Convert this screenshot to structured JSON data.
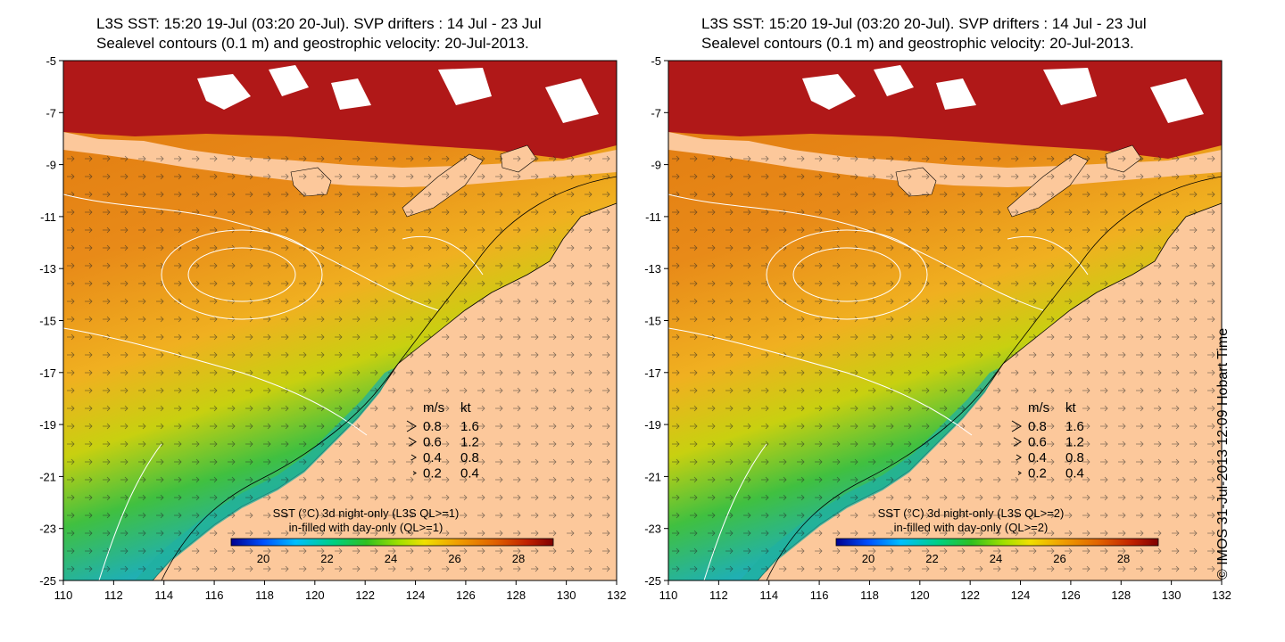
{
  "panels": [
    {
      "title_line1": "L3S SST: 15:20 19-Jul (03:20 20-Jul). SVP drifters : 14 Jul - 23 Jul",
      "title_line2": "Sealevel contours (0.1 m) and geostrophic velocity: 20-Jul-2013.",
      "colorbar_caption_line1": "SST (°C)  3d night-only (L3S QL>=1)",
      "colorbar_caption_line2": "in-filled with day-only (QL>=1)"
    },
    {
      "title_line1": "L3S SST: 15:20 19-Jul (03:20 20-Jul). SVP drifters : 14 Jul - 23 Jul",
      "title_line2": "Sealevel contours (0.1 m) and geostrophic velocity: 20-Jul-2013.",
      "colorbar_caption_line1": "SST (°C)  3d night-only (L3S QL>=2)",
      "colorbar_caption_line2": "in-filled with day-only (QL>=2)"
    }
  ],
  "axes": {
    "x_ticks": [
      "110",
      "112",
      "114",
      "116",
      "118",
      "120",
      "122",
      "124",
      "126",
      "128",
      "130",
      "132"
    ],
    "y_ticks": [
      "-5",
      "-7",
      "-9",
      "-11",
      "-13",
      "-15",
      "-17",
      "-19",
      "-21",
      "-23",
      "-25"
    ]
  },
  "velocity_legend": {
    "header_ms": "m/s",
    "header_kt": "kt",
    "rows": [
      {
        "ms": "0.8",
        "kt": "1.6"
      },
      {
        "ms": "0.6",
        "kt": "1.2"
      },
      {
        "ms": "0.4",
        "kt": "0.8"
      },
      {
        "ms": "0.2",
        "kt": "0.4"
      }
    ]
  },
  "colorbar": {
    "ticks": [
      "20",
      "22",
      "24",
      "26",
      "28"
    ],
    "colors": [
      "#00008f",
      "#0050ff",
      "#00bfff",
      "#00d080",
      "#30c020",
      "#a0e000",
      "#f0e000",
      "#f0a000",
      "#e06000",
      "#c02000",
      "#800000"
    ]
  },
  "copyright": "© IMOS 31-Jul-2013 12:09 Hobart Time",
  "colors": {
    "land": "#fcc89b",
    "ocean_warm": "#e07010",
    "ocean_mid": "#f0a020",
    "cold_coast": "#40c040",
    "hot_north": "#b01010"
  }
}
